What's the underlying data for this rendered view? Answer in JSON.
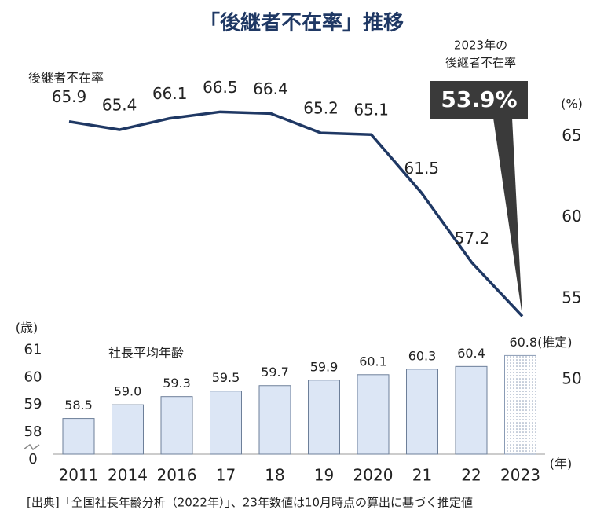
{
  "chart_data": [
    {
      "type": "line",
      "title": "「後継者不在率」推移",
      "source": "[出典]「全国社長年齢分析（2022年）」、23年数値は10月時点の算出に基づく推定値",
      "annotation": [
        "2023年の",
        "後継者不在率"
      ],
      "categories": [
        "2011",
        "2014",
        "2016",
        "17",
        "18",
        "19",
        "2020",
        "21",
        "22",
        "2023"
      ],
      "y2lim": [
        50,
        67
      ],
      "y2ticks": [
        50,
        55,
        60,
        65
      ],
      "y2_unit": "(%)",
      "series": [
        {
          "name": "後継者不在率",
          "color": "#1f3864",
          "axis": "y2",
          "values": [
            65.9,
            65.4,
            66.1,
            66.5,
            66.4,
            65.2,
            65.1,
            61.5,
            57.2,
            53.9
          ],
          "value_labels": [
            "65.9",
            "65.4",
            "66.1",
            "66.5",
            "66.4",
            "65.2",
            "65.1",
            "61.5",
            "57.2",
            "53.9%"
          ]
        }
      ]
    },
    {
      "type": "bar",
      "categories": [
        "2011",
        "2014",
        "2016",
        "17",
        "18",
        "19",
        "2020",
        "21",
        "22",
        "2023"
      ],
      "ylim": [
        0,
        61.5
      ],
      "yticks": [
        0,
        58,
        59,
        60,
        61
      ],
      "axis_break": true,
      "y_unit": "(歳)",
      "x_unit": "(年)",
      "series": [
        {
          "name": "社長平均年齢",
          "color": "#dce6f5",
          "values": [
            58.5,
            59.0,
            59.3,
            59.5,
            59.7,
            59.9,
            60.1,
            60.3,
            60.4,
            60.8
          ],
          "value_labels": [
            "58.5",
            "59.0",
            "59.3",
            "59.5",
            "59.7",
            "59.9",
            "60.1",
            "60.3",
            "60.4",
            "60.8(推定)"
          ],
          "estimated": [
            false,
            false,
            false,
            false,
            false,
            false,
            false,
            false,
            false,
            true
          ]
        }
      ]
    }
  ]
}
